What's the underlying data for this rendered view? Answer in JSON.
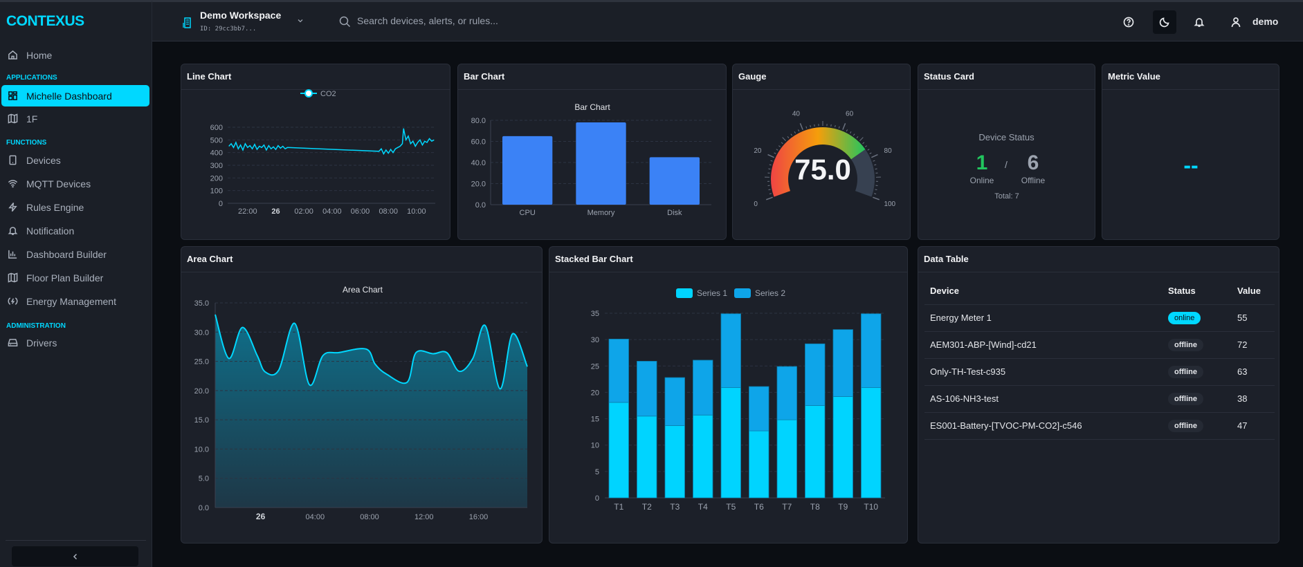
{
  "app": {
    "logo": "CONTEXUS",
    "accent": "#00d8ff"
  },
  "sidebar": {
    "home": {
      "label": "Home",
      "icon": "home-icon"
    },
    "sections": [
      {
        "title": "APPLICATIONS",
        "items": [
          {
            "label": "Michelle Dashboard",
            "icon": "dashboard-grid-icon",
            "active": true
          },
          {
            "label": "1F",
            "icon": "map-icon"
          }
        ]
      },
      {
        "title": "FUNCTIONS",
        "items": [
          {
            "label": "Devices",
            "icon": "tablet-icon"
          },
          {
            "label": "MQTT Devices",
            "icon": "wifi-icon"
          },
          {
            "label": "Rules Engine",
            "icon": "lightning-icon"
          },
          {
            "label": "Notification",
            "icon": "bell-icon"
          },
          {
            "label": "Dashboard Builder",
            "icon": "bar-chart-icon"
          },
          {
            "label": "Floor Plan Builder",
            "icon": "map-icon"
          },
          {
            "label": "Energy Management",
            "icon": "energy-icon"
          }
        ]
      },
      {
        "title": "ADMINISTRATION",
        "items": [
          {
            "label": "Drivers",
            "icon": "hard-drive-icon"
          }
        ]
      }
    ],
    "collapse_icon": "chevron-left-icon"
  },
  "header": {
    "workspace": "Demo Workspace",
    "workspace_id": "ID: 29cc3bb7...",
    "search_placeholder": "Search devices, alerts, or rules...",
    "user": "demo"
  },
  "widgets": {
    "line": {
      "title": "Line Chart"
    },
    "bar": {
      "title": "Bar Chart"
    },
    "gauge": {
      "title": "Gauge",
      "display": "75.0"
    },
    "status": {
      "title": "Status Card",
      "heading": "Device Status",
      "online": "1",
      "online_label": "Online",
      "sep": "/",
      "offline": "6",
      "offline_label": "Offline",
      "total": "Total: 7",
      "online_color": "#22c55e"
    },
    "metric": {
      "title": "Metric Value",
      "value": "--"
    },
    "area": {
      "title": "Area Chart"
    },
    "stacked": {
      "title": "Stacked Bar Chart"
    },
    "table": {
      "title": "Data Table",
      "columns": [
        "Device",
        "Status",
        "Value"
      ],
      "rows": [
        {
          "device": "Energy Meter 1",
          "status": "online",
          "value": "55"
        },
        {
          "device": "AEM301-ABP-[Wind]-cd21",
          "status": "offline",
          "value": "72"
        },
        {
          "device": "Only-TH-Test-c935",
          "status": "offline",
          "value": "63"
        },
        {
          "device": "AS-106-NH3-test",
          "status": "offline",
          "value": "38"
        },
        {
          "device": "ES001-Battery-[TVOC-PM-CO2]-c546",
          "status": "offline",
          "value": "47"
        }
      ]
    }
  },
  "chart_data": [
    {
      "type": "line",
      "legend": [
        "CO2"
      ],
      "color": "#00d8ff",
      "ylim": [
        0,
        600
      ],
      "yticks": [
        "0",
        "100",
        "200",
        "300",
        "400",
        "500",
        "600"
      ],
      "xticks": [
        "22:00",
        "26",
        "02:00",
        "04:00",
        "06:00",
        "08:00",
        "10:00"
      ],
      "series": [
        {
          "name": "CO2",
          "points": [
            [
              "20:40",
              450
            ],
            [
              "20:50",
              470
            ],
            [
              "21:00",
              440
            ],
            [
              "21:10",
              480
            ],
            [
              "21:20",
              430
            ],
            [
              "21:30",
              460
            ],
            [
              "21:40",
              420
            ],
            [
              "21:50",
              470
            ],
            [
              "22:00",
              440
            ],
            [
              "22:10",
              455
            ],
            [
              "22:20",
              430
            ],
            [
              "22:30",
              465
            ],
            [
              "22:40",
              425
            ],
            [
              "22:50",
              450
            ],
            [
              "23:00",
              440
            ],
            [
              "23:10",
              460
            ],
            [
              "23:20",
              420
            ],
            [
              "23:30",
              455
            ],
            [
              "23:40",
              430
            ],
            [
              "23:50",
              445
            ],
            [
              "00:00",
              425
            ],
            [
              "00:10",
              455
            ],
            [
              "00:20",
              435
            ],
            [
              "00:30",
              450
            ],
            [
              "00:40",
              430
            ],
            [
              "00:50",
              440
            ],
            [
              "07:20",
              410
            ],
            [
              "07:30",
              430
            ],
            [
              "07:40",
              390
            ],
            [
              "07:50",
              420
            ],
            [
              "08:00",
              395
            ],
            [
              "08:10",
              425
            ],
            [
              "08:20",
              400
            ],
            [
              "08:30",
              430
            ],
            [
              "08:40",
              440
            ],
            [
              "08:50",
              450
            ],
            [
              "09:00",
              470
            ],
            [
              "09:05",
              590
            ],
            [
              "09:15",
              500
            ],
            [
              "09:25",
              530
            ],
            [
              "09:35",
              470
            ],
            [
              "09:45",
              490
            ],
            [
              "09:55",
              450
            ],
            [
              "10:05",
              480
            ],
            [
              "10:15",
              500
            ],
            [
              "10:25",
              460
            ],
            [
              "10:35",
              490
            ],
            [
              "10:45",
              480
            ],
            [
              "10:55",
              510
            ],
            [
              "11:05",
              490
            ],
            [
              "11:15",
              500
            ]
          ]
        }
      ]
    },
    {
      "type": "bar",
      "title": "Bar Chart",
      "categories": [
        "CPU",
        "Memory",
        "Disk"
      ],
      "values": [
        65,
        78,
        45
      ],
      "ylim": [
        0,
        80
      ],
      "yticks": [
        "0.0",
        "20.0",
        "40.0",
        "60.0",
        "80.0"
      ],
      "color": "#3b82f6"
    },
    {
      "type": "gauge",
      "value": 75,
      "min": 0,
      "max": 100,
      "ticks": [
        "0",
        "20",
        "40",
        "60",
        "80",
        "100"
      ],
      "colors": [
        "#ef4444",
        "#f59e0b",
        "#22c55e"
      ],
      "track": "#374151"
    },
    {
      "type": "area",
      "title": "Area Chart",
      "color": "#00d8ff",
      "ylim": [
        0,
        35
      ],
      "yticks": [
        "0.0",
        "5.0",
        "10.0",
        "15.0",
        "20.0",
        "25.0",
        "30.0",
        "35.0"
      ],
      "xticks": [
        "26",
        "04:00",
        "08:00",
        "12:00",
        "16:00"
      ],
      "points": [
        [
          "20:40",
          33
        ],
        [
          "21:40",
          25.5
        ],
        [
          "22:40",
          30.8
        ],
        [
          "23:45",
          26
        ],
        [
          "00:20",
          23.2
        ],
        [
          "01:20",
          23.5
        ],
        [
          "02:30",
          31.5
        ],
        [
          "03:35",
          21
        ],
        [
          "04:35",
          26
        ],
        [
          "05:45",
          26.5
        ],
        [
          "07:45",
          27.1
        ],
        [
          "08:25",
          24.5
        ],
        [
          "09:15",
          22.8
        ],
        [
          "10:45",
          21.4
        ],
        [
          "11:25",
          26.5
        ],
        [
          "12:40",
          26.3
        ],
        [
          "13:40",
          26.5
        ],
        [
          "14:35",
          23.3
        ],
        [
          "15:35",
          25.5
        ],
        [
          "16:30",
          31.1
        ],
        [
          "17:35",
          20.3
        ],
        [
          "18:30",
          29.7
        ],
        [
          "19:35",
          24.1
        ]
      ]
    },
    {
      "type": "bar",
      "stacked": true,
      "legend_position": "top",
      "categories": [
        "T1",
        "T2",
        "T3",
        "T4",
        "T5",
        "T6",
        "T7",
        "T8",
        "T9",
        "T10"
      ],
      "ylim": [
        0,
        35
      ],
      "yticks": [
        "0",
        "5",
        "10",
        "15",
        "20",
        "25",
        "30",
        "35"
      ],
      "series": [
        {
          "name": "Series 1",
          "color": "#00d4ff",
          "values": [
            18.1,
            15.5,
            13.7,
            15.7,
            20.9,
            12.7,
            14.8,
            17.5,
            19.2,
            20.9
          ]
        },
        {
          "name": "Series 2",
          "color": "#0ea5e9",
          "values": [
            12.0,
            10.4,
            9.1,
            10.4,
            14.0,
            8.4,
            10.1,
            11.7,
            12.7,
            14.0
          ]
        }
      ]
    }
  ]
}
